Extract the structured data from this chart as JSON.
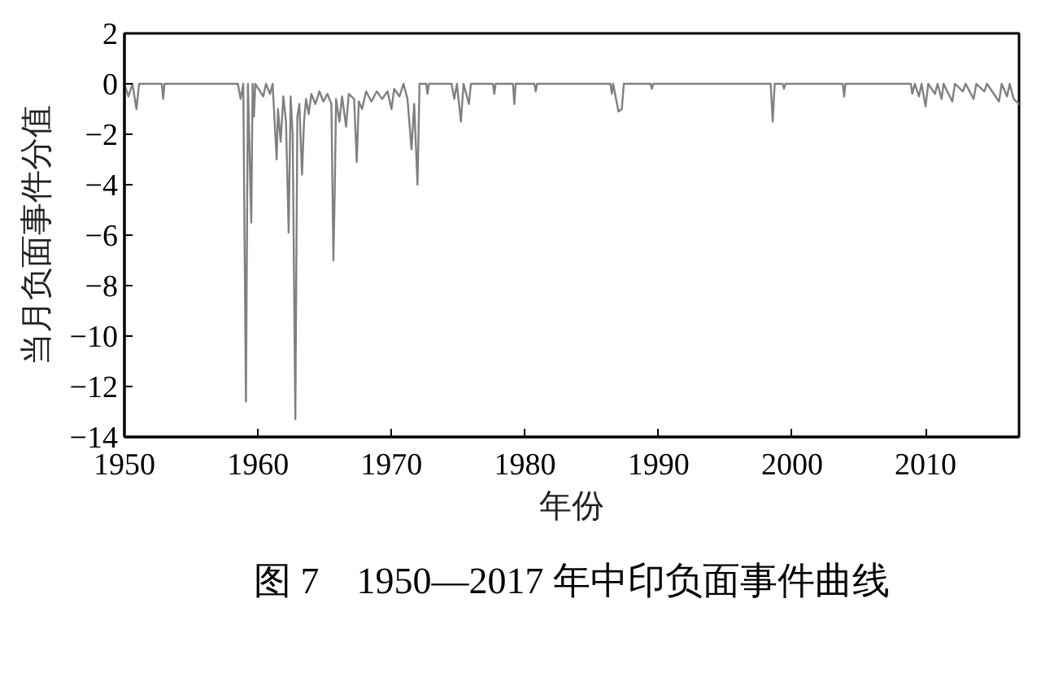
{
  "chart_data": {
    "type": "line",
    "title": "图 7　1950—2017 年中印负面事件曲线",
    "xlabel": "年份",
    "ylabel": "当月负面事件分值",
    "x": [
      1950.0,
      1950.3,
      1950.6,
      1950.9,
      1951.1,
      1952.8,
      1952.9,
      1953.0,
      1958.5,
      1958.7,
      1958.9,
      1959.1,
      1959.25,
      1959.5,
      1959.6,
      1959.7,
      1959.8,
      1960.4,
      1960.6,
      1960.9,
      1961.1,
      1961.4,
      1961.5,
      1961.7,
      1961.9,
      1962.1,
      1962.3,
      1962.45,
      1962.6,
      1962.8,
      1962.95,
      1963.1,
      1963.3,
      1963.45,
      1963.6,
      1963.8,
      1964.0,
      1964.3,
      1964.6,
      1964.9,
      1965.2,
      1965.5,
      1965.65,
      1965.75,
      1965.85,
      1966.1,
      1966.3,
      1966.6,
      1966.8,
      1967.2,
      1967.4,
      1967.55,
      1967.8,
      1968.1,
      1968.5,
      1968.9,
      1969.3,
      1969.7,
      1970.0,
      1970.2,
      1970.6,
      1970.9,
      1971.2,
      1971.5,
      1971.7,
      1971.95,
      1972.1,
      1972.6,
      1972.7,
      1972.8,
      1974.5,
      1974.7,
      1974.9,
      1975.2,
      1975.4,
      1975.8,
      1975.95,
      1977.6,
      1977.7,
      1977.8,
      1979.1,
      1979.2,
      1979.3,
      1980.7,
      1980.8,
      1980.9,
      1986.4,
      1986.5,
      1986.6,
      1987.0,
      1987.25,
      1987.4,
      1989.4,
      1989.5,
      1989.6,
      1998.4,
      1998.55,
      1998.7,
      1999.3,
      1999.4,
      1999.5,
      2003.8,
      2003.9,
      2004.0,
      2008.9,
      2009.0,
      2009.2,
      2009.5,
      2009.7,
      2010.0,
      2010.2,
      2010.7,
      2010.9,
      2011.2,
      2011.35,
      2012.0,
      2012.2,
      2012.8,
      2013.0,
      2013.6,
      2013.8,
      2014.4,
      2014.6,
      2015.5,
      2015.7,
      2016.1,
      2016.3,
      2016.6,
      2017.0
    ],
    "series": [
      {
        "color": "#808080",
        "values": [
          0,
          -0.5,
          0,
          -1.0,
          0,
          0,
          -0.6,
          0,
          0,
          -0.6,
          0,
          -12.6,
          0,
          -5.5,
          0,
          -1.3,
          0,
          -0.5,
          0,
          -0.4,
          0,
          -3.0,
          -1.0,
          -2.3,
          -0.5,
          -1.5,
          -5.9,
          -0.5,
          -2.0,
          -13.3,
          -1.3,
          -0.8,
          -3.6,
          -1.5,
          -0.6,
          -1.2,
          -0.4,
          -0.8,
          -0.3,
          -0.7,
          -0.4,
          -0.8,
          -7.0,
          -4.3,
          -0.6,
          -1.5,
          -0.5,
          -1.7,
          -0.4,
          -0.6,
          -3.1,
          -0.7,
          -1.0,
          -0.3,
          -0.7,
          -0.3,
          -0.6,
          -0.3,
          -1.0,
          -0.2,
          -0.5,
          0,
          -0.6,
          -2.6,
          -0.8,
          -4.0,
          0,
          0,
          -0.4,
          0,
          0,
          -0.6,
          0,
          -1.5,
          0,
          -0.8,
          0,
          0,
          -0.4,
          0,
          0,
          -0.8,
          0,
          0,
          -0.3,
          0,
          0,
          -0.4,
          0,
          -1.1,
          -1.0,
          0,
          0,
          -0.2,
          0,
          0,
          -1.5,
          0,
          0,
          -0.2,
          0,
          0,
          -0.5,
          0,
          0,
          -0.4,
          0,
          -0.5,
          0,
          -0.9,
          0,
          -0.4,
          0,
          -0.6,
          0,
          -0.7,
          0,
          -0.3,
          0,
          -0.6,
          0,
          -0.3,
          0,
          -0.7,
          0,
          -0.5,
          0,
          -0.6,
          -0.8
        ]
      }
    ],
    "xlim": [
      1950,
      2017
    ],
    "ylim": [
      -14,
      2
    ],
    "xticks": [
      1950,
      1960,
      1970,
      1980,
      1990,
      2000,
      2010
    ],
    "yticks": [
      -14,
      -12,
      -10,
      -8,
      -6,
      -4,
      -2,
      0,
      2
    ]
  }
}
